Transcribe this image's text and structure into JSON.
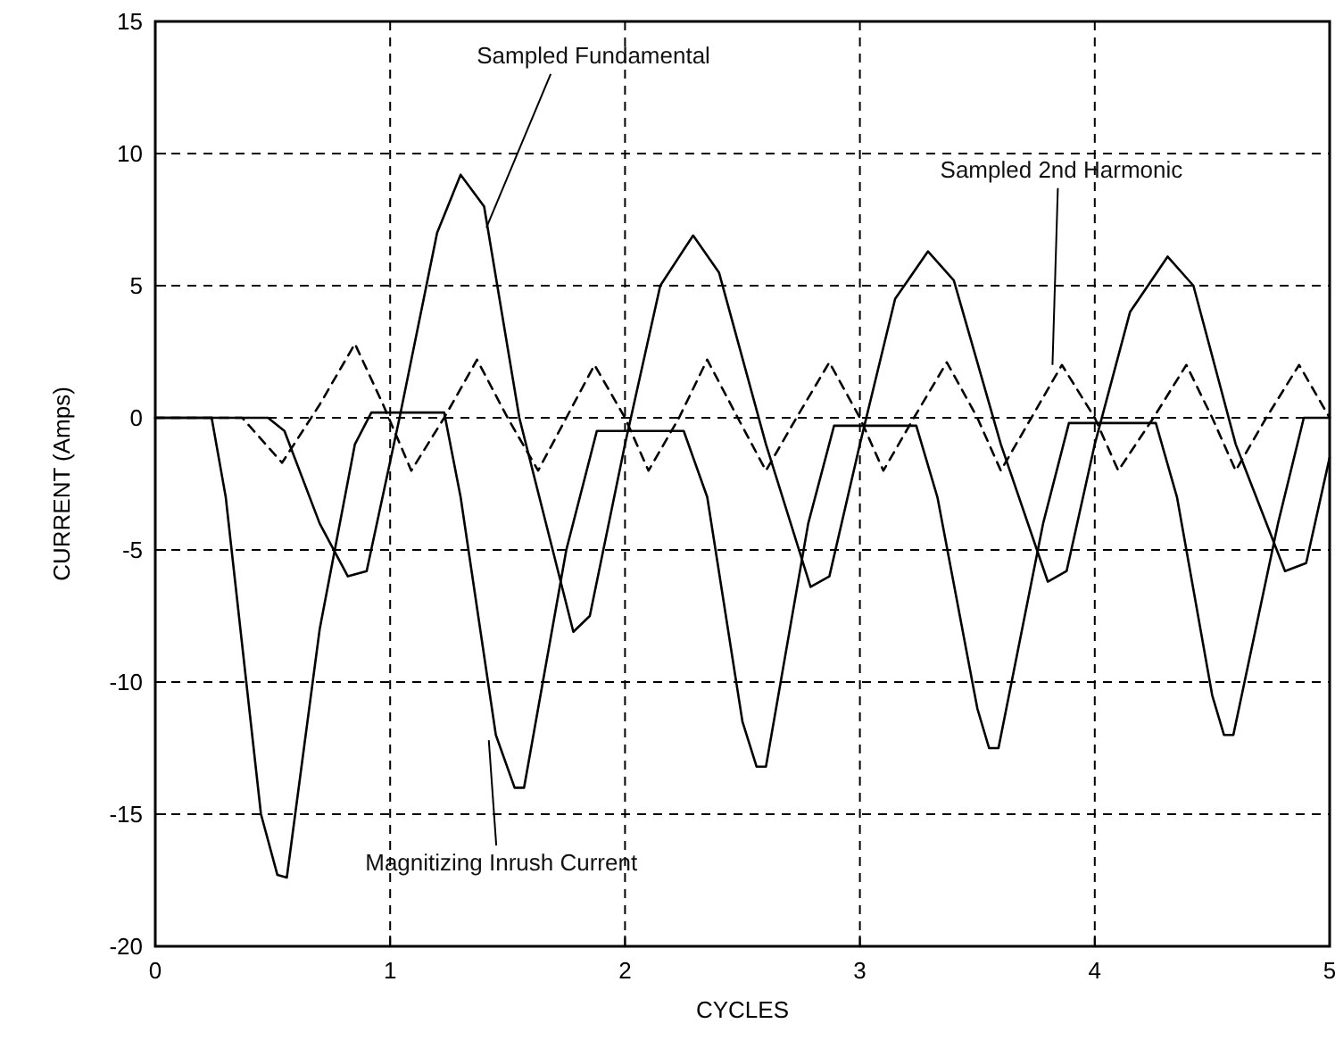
{
  "chart_data": {
    "type": "line",
    "xlabel": "CYCLES",
    "ylabel": "CURRENT (Amps)",
    "xlim": [
      0,
      5
    ],
    "ylim": [
      -20,
      15
    ],
    "xticks": [
      0,
      1,
      2,
      3,
      4,
      5
    ],
    "yticks": [
      -20,
      -15,
      -10,
      -5,
      0,
      5,
      10,
      15
    ],
    "grid": true,
    "series": [
      {
        "color": "#000000",
        "line_style": "solid",
        "x": [
          0,
          0.24,
          0.3,
          0.45,
          0.52,
          0.56,
          0.7,
          0.85,
          0.92,
          1.23,
          1.3,
          1.45,
          1.53,
          1.57,
          1.75,
          1.88,
          2.25,
          2.35,
          2.5,
          2.56,
          2.6,
          2.78,
          2.89,
          3.24,
          3.33,
          3.5,
          3.55,
          3.59,
          3.78,
          3.89,
          4.26,
          4.35,
          4.5,
          4.55,
          4.59,
          4.78,
          4.89,
          5
        ],
        "values": [
          0,
          0,
          -3,
          -15,
          -17.3,
          -17.4,
          -8,
          -1,
          0.2,
          0.2,
          -3,
          -12,
          -14,
          -14,
          -5,
          -0.5,
          -0.5,
          -3,
          -11.5,
          -13.2,
          -13.2,
          -4,
          -0.3,
          -0.3,
          -3,
          -11,
          -12.5,
          -12.5,
          -4,
          -0.2,
          -0.2,
          -3,
          -10.5,
          -12,
          -12,
          -4,
          0,
          0
        ]
      },
      {
        "color": "#000000",
        "line_style": "solid",
        "x": [
          0,
          0.48,
          0.55,
          0.7,
          0.82,
          0.9,
          1.04,
          1.2,
          1.3,
          1.4,
          1.55,
          1.78,
          1.85,
          2.0,
          2.15,
          2.29,
          2.4,
          2.6,
          2.79,
          2.87,
          3.0,
          3.15,
          3.29,
          3.4,
          3.6,
          3.8,
          3.88,
          4.0,
          4.15,
          4.31,
          4.42,
          4.6,
          4.81,
          4.9,
          5
        ],
        "values": [
          0,
          0,
          -0.5,
          -4,
          -6,
          -5.8,
          0,
          7,
          9.2,
          8,
          0,
          -8.1,
          -7.5,
          -1,
          5,
          6.9,
          5.5,
          -1,
          -6.4,
          -6,
          -1,
          4.5,
          6.3,
          5.2,
          -1,
          -6.2,
          -5.8,
          -1,
          4,
          6.1,
          5,
          -1,
          -5.8,
          -5.5,
          -1.5
        ]
      },
      {
        "color": "#000000",
        "line_style": "dashed",
        "x": [
          0,
          0.37,
          0.54,
          0.7,
          0.85,
          0.97,
          1.09,
          1.23,
          1.37,
          1.5,
          1.63,
          1.75,
          1.87,
          2.0,
          2.1,
          2.23,
          2.35,
          2.48,
          2.6,
          2.73,
          2.87,
          3.0,
          3.1,
          3.23,
          3.37,
          3.5,
          3.6,
          3.73,
          3.86,
          4.0,
          4.1,
          4.25,
          4.39,
          4.5,
          4.6,
          4.73,
          4.87,
          5
        ],
        "values": [
          0,
          0,
          -1.7,
          0.5,
          2.8,
          0.5,
          -2,
          0,
          2.2,
          0,
          -2,
          0,
          2,
          0,
          -2,
          0,
          2.2,
          0,
          -2,
          0,
          2.1,
          0,
          -2,
          0,
          2.1,
          0,
          -2,
          0,
          2,
          0,
          -2,
          0,
          2,
          0,
          -2,
          0,
          2,
          0
        ]
      }
    ],
    "annotations": [
      {
        "text": "Sampled Fundamental",
        "x": 1.41,
        "y": 7.2
      },
      {
        "text": "Sampled 2nd Harmonic",
        "x": 3.82,
        "y": 2
      },
      {
        "text": "Magnitizing Inrush Current",
        "x": 1.42,
        "y": -12.2
      }
    ]
  }
}
